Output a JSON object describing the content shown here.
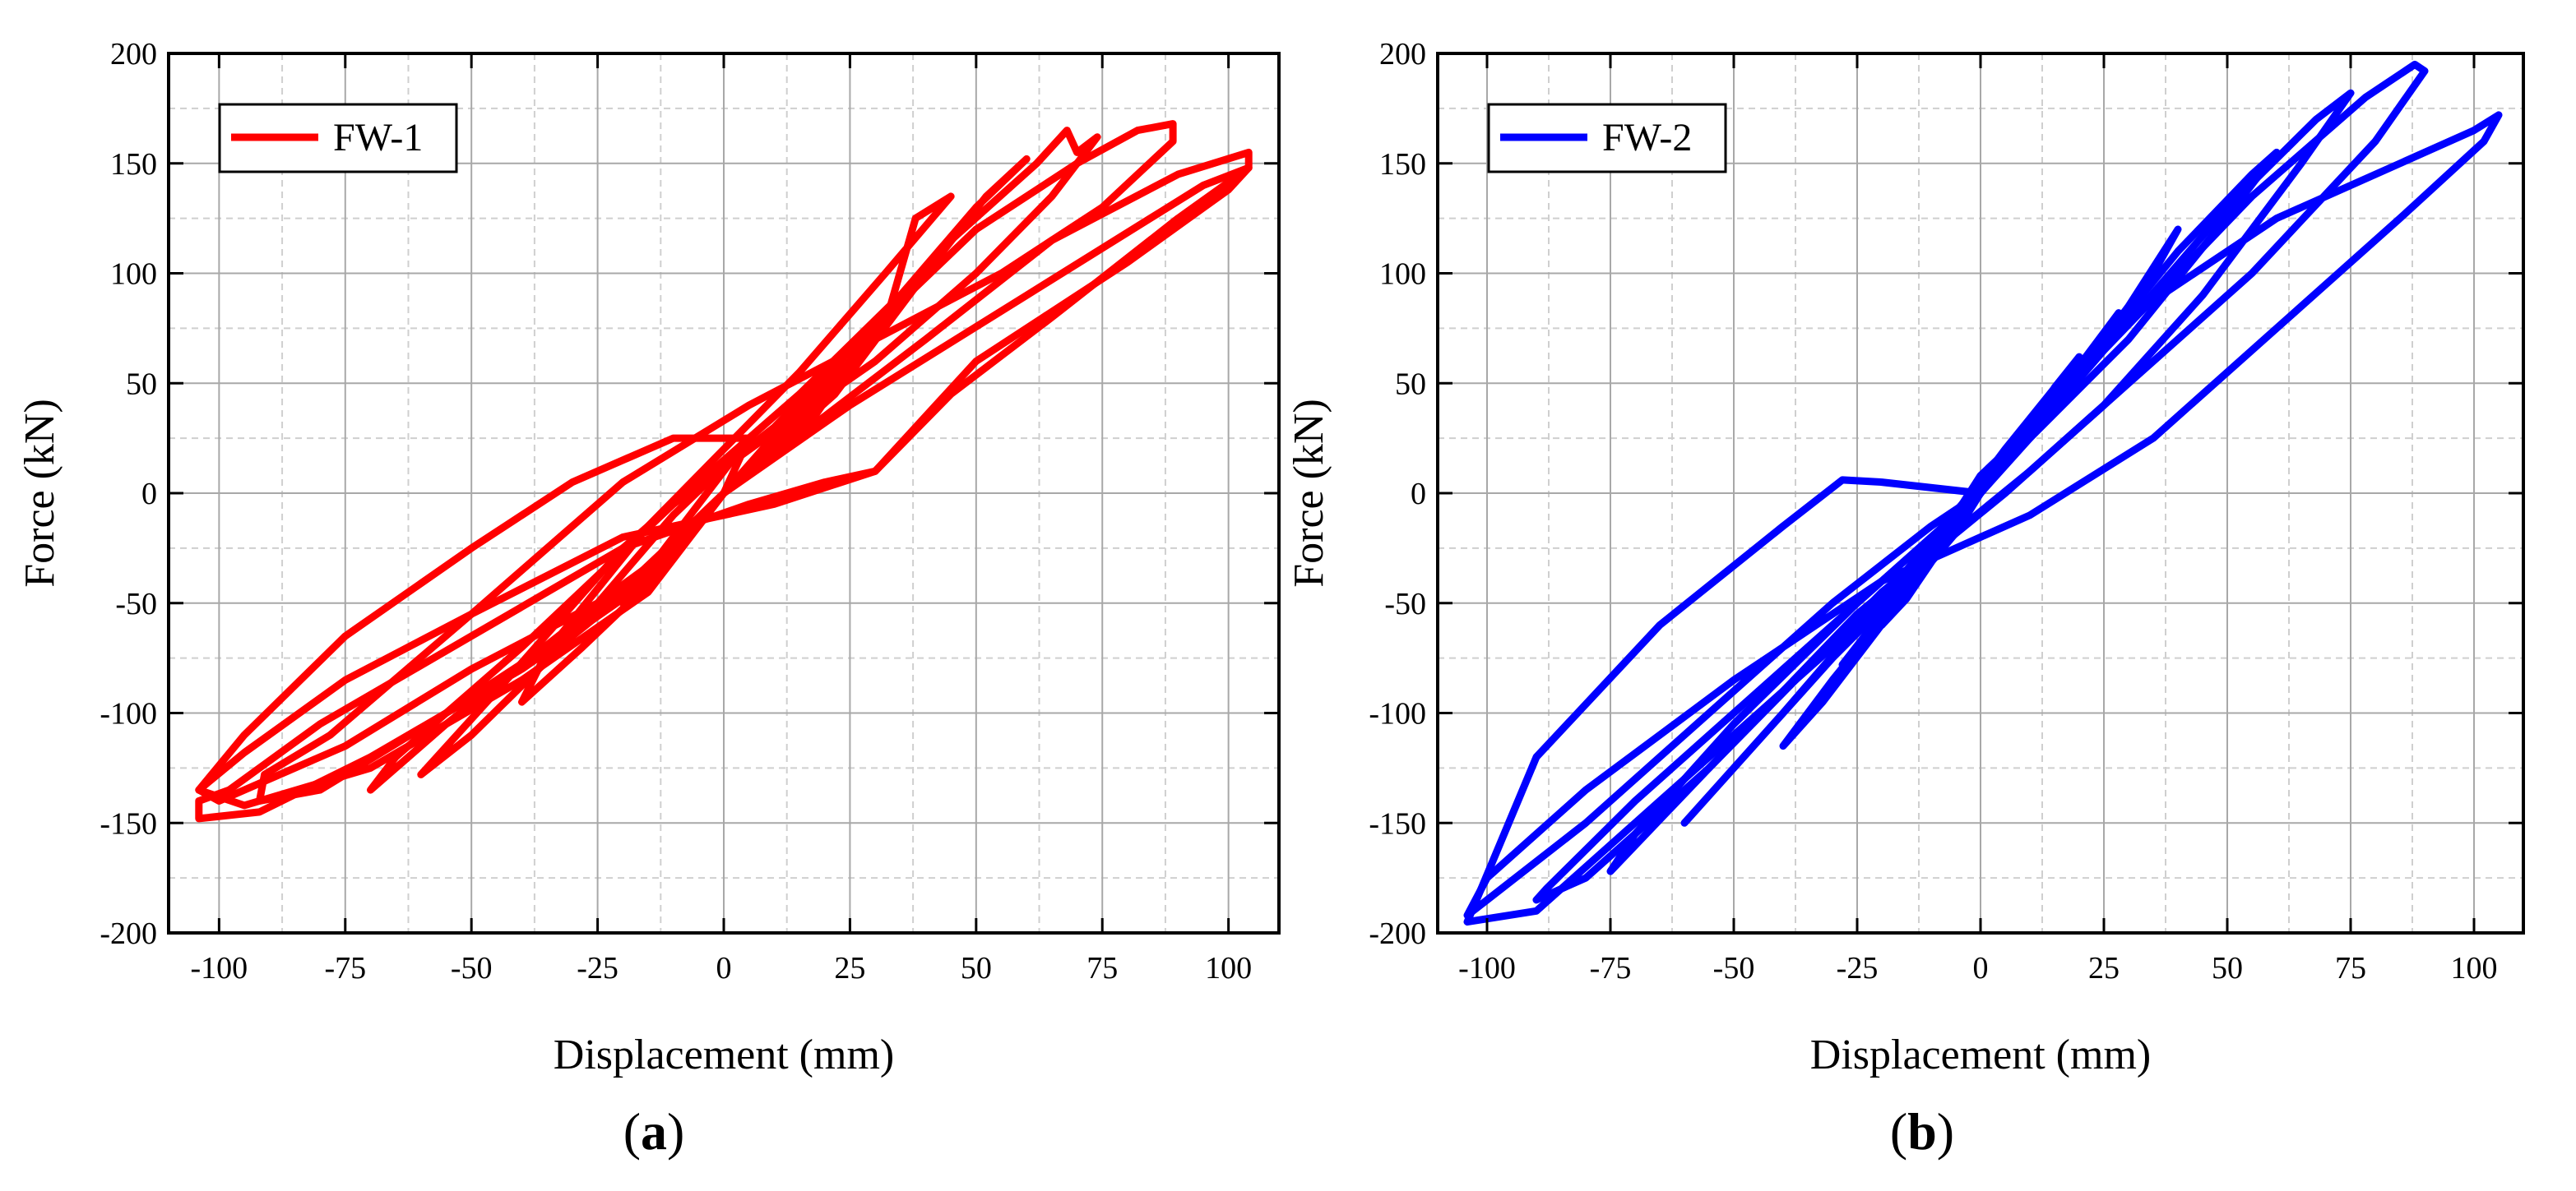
{
  "chart_data": [
    {
      "type": "line",
      "panel": "a",
      "panel_label": "a",
      "xlabel": "Displacement (mm)",
      "ylabel": "Force (kN)",
      "xlim": [
        -110,
        110
      ],
      "ylim": [
        -200,
        200
      ],
      "xticks": [
        -100,
        -75,
        -50,
        -25,
        0,
        25,
        50,
        75,
        100
      ],
      "yticks": [
        -200,
        -150,
        -100,
        -50,
        0,
        50,
        100,
        150,
        200
      ],
      "grid": true,
      "legend_position": "top-left",
      "series": [
        {
          "name": "FW-1",
          "color": "#ff0000",
          "cycles": [
            {
              "x": [
                0,
                8,
                15,
                20,
                15,
                5,
                0,
                -5,
                -15,
                -20,
                -15,
                -5,
                0
              ],
              "y": [
                0,
                20,
                42,
                55,
                45,
                25,
                10,
                -5,
                -35,
                -50,
                -38,
                -15,
                0
              ]
            },
            {
              "x": [
                0,
                12,
                25,
                30,
                22,
                10,
                0,
                -10,
                -25,
                -30,
                -22,
                -10,
                0
              ],
              "y": [
                0,
                25,
                60,
                78,
                58,
                30,
                12,
                -10,
                -50,
                -65,
                -48,
                -22,
                0
              ]
            },
            {
              "x": [
                0,
                18,
                33,
                38,
                45,
                32,
                15,
                0,
                -15,
                -35,
                -40,
                -28,
                -12,
                0
              ],
              "y": [
                0,
                35,
                85,
                125,
                135,
                100,
                55,
                20,
                -15,
                -72,
                -95,
                -70,
                -35,
                0
              ]
            },
            {
              "x": [
                0,
                22,
                40,
                52,
                60,
                50,
                35,
                15,
                0,
                -20,
                -45,
                -60,
                -50,
                -30,
                -10,
                0
              ],
              "y": [
                0,
                45,
                100,
                135,
                152,
                130,
                90,
                45,
                15,
                -25,
                -90,
                -128,
                -110,
                -65,
                -28,
                0
              ]
            },
            {
              "x": [
                0,
                25,
                45,
                62,
                68,
                70,
                74,
                65,
                50,
                30,
                10,
                -10,
                -40,
                -65,
                -70,
                -55,
                -30,
                -8,
                0
              ],
              "y": [
                0,
                60,
                115,
                150,
                165,
                155,
                162,
                135,
                100,
                60,
                28,
                -5,
                -70,
                -120,
                -135,
                -105,
                -60,
                -22,
                0
              ]
            },
            {
              "x": [
                0,
                25,
                50,
                70,
                82,
                89,
                89,
                75,
                55,
                30,
                5,
                -20,
                -50,
                -78,
                -91,
                -92,
                -80,
                -55,
                -25,
                0
              ],
              "y": [
                0,
                65,
                120,
                150,
                165,
                168,
                160,
                130,
                100,
                70,
                40,
                5,
                -55,
                -110,
                -128,
                -140,
                -135,
                -100,
                -55,
                0
              ]
            },
            {
              "x": [
                0,
                20,
                40,
                65,
                90,
                104,
                104,
                90,
                65,
                45,
                30,
                20,
                5,
                -20,
                -50,
                -80,
                -98,
                -104,
                -104,
                -92,
                -70,
                -40,
                -15,
                0
              ],
              "y": [
                0,
                35,
                70,
                115,
                145,
                155,
                148,
                125,
                80,
                45,
                10,
                5,
                -5,
                -25,
                -65,
                -105,
                -135,
                -140,
                -148,
                -145,
                -120,
                -80,
                -40,
                0
              ]
            },
            {
              "x": [
                0,
                25,
                60,
                95,
                104,
                100,
                80,
                50,
                30,
                10,
                -20,
                -50,
                -75,
                -95,
                -104,
                -100,
                -75,
                -50,
                -25,
                -10,
                0
              ],
              "y": [
                0,
                40,
                90,
                140,
                148,
                138,
                105,
                60,
                10,
                -5,
                -20,
                -55,
                -85,
                -118,
                -135,
                -140,
                -115,
                -80,
                -50,
                -25,
                0
              ]
            },
            {
              "x": [
                0,
                5,
                -10,
                -30,
                -50,
                -75,
                -95,
                -104,
                -95,
                -70,
                -40,
                -15,
                0
              ],
              "y": [
                0,
                25,
                25,
                5,
                -25,
                -65,
                -110,
                -135,
                -142,
                -125,
                -85,
                -45,
                0
              ]
            }
          ]
        }
      ]
    },
    {
      "type": "line",
      "panel": "b",
      "panel_label": "b",
      "xlabel": "Displacement (mm)",
      "ylabel": "Force (kN)",
      "xlim": [
        -110,
        110
      ],
      "ylim": [
        -200,
        200
      ],
      "xticks": [
        -100,
        -75,
        -50,
        -25,
        0,
        25,
        50,
        75,
        100
      ],
      "yticks": [
        -200,
        -150,
        -100,
        -50,
        0,
        50,
        100,
        150,
        200
      ],
      "grid": true,
      "legend_position": "top-left",
      "series": [
        {
          "name": "FW-2",
          "color": "#0000ff",
          "cycles": [
            {
              "x": [
                0,
                8,
                15,
                20,
                14,
                5,
                0,
                -5,
                -15,
                -20,
                -14,
                -5,
                0
              ],
              "y": [
                0,
                22,
                48,
                62,
                45,
                20,
                5,
                -15,
                -48,
                -60,
                -42,
                -18,
                0
              ]
            },
            {
              "x": [
                0,
                12,
                22,
                28,
                20,
                8,
                0,
                -8,
                -22,
                -28,
                -20,
                -8,
                0
              ],
              "y": [
                0,
                30,
                62,
                82,
                58,
                25,
                8,
                -20,
                -62,
                -78,
                -55,
                -25,
                0
              ]
            },
            {
              "x": [
                0,
                15,
                30,
                40,
                35,
                20,
                5,
                0,
                -10,
                -30,
                -40,
                -32,
                -15,
                0
              ],
              "y": [
                0,
                40,
                85,
                120,
                100,
                55,
                15,
                5,
                -30,
                -85,
                -115,
                -95,
                -45,
                0
              ]
            },
            {
              "x": [
                0,
                20,
                40,
                55,
                60,
                48,
                30,
                10,
                0,
                -15,
                -40,
                -60,
                -50,
                -30,
                -10,
                0
              ],
              "y": [
                0,
                55,
                110,
                145,
                155,
                120,
                70,
                25,
                5,
                -35,
                -100,
                -150,
                -125,
                -75,
                -30,
                0
              ]
            },
            {
              "x": [
                0,
                25,
                50,
                68,
                75,
                65,
                45,
                25,
                5,
                -25,
                -55,
                -75,
                -70,
                -50,
                -25,
                0
              ],
              "y": [
                0,
                65,
                130,
                170,
                182,
                150,
                90,
                40,
                0,
                -55,
                -125,
                -172,
                -155,
                -105,
                -50,
                0
              ]
            },
            {
              "x": [
                0,
                25,
                55,
                78,
                88,
                90,
                80,
                55,
                30,
                10,
                -20,
                -55,
                -80,
                -90,
                -88,
                -70,
                -40,
                -15,
                0
              ],
              "y": [
                0,
                65,
                135,
                180,
                195,
                192,
                160,
                100,
                50,
                10,
                -45,
                -125,
                -175,
                -185,
                -180,
                -140,
                -80,
                -30,
                0
              ]
            },
            {
              "x": [
                0,
                30,
                60,
                85,
                100,
                105,
                102,
                85,
                60,
                35,
                10,
                -20,
                -50,
                -80,
                -100,
                -104,
                -100,
                -80,
                -55,
                -30,
                -10,
                0
              ],
              "y": [
                0,
                80,
                125,
                150,
                165,
                172,
                160,
                125,
                75,
                25,
                -10,
                -40,
                -85,
                -135,
                -175,
                -192,
                -185,
                -150,
                -100,
                -50,
                -15,
                0
              ]
            },
            {
              "x": [
                0,
                -20,
                -28,
                -40,
                -65,
                -90,
                -104,
                -90,
                -65,
                -35,
                -10,
                0
              ],
              "y": [
                0,
                5,
                6,
                -15,
                -60,
                -120,
                -195,
                -190,
                -140,
                -80,
                -30,
                0
              ]
            }
          ]
        }
      ]
    }
  ]
}
